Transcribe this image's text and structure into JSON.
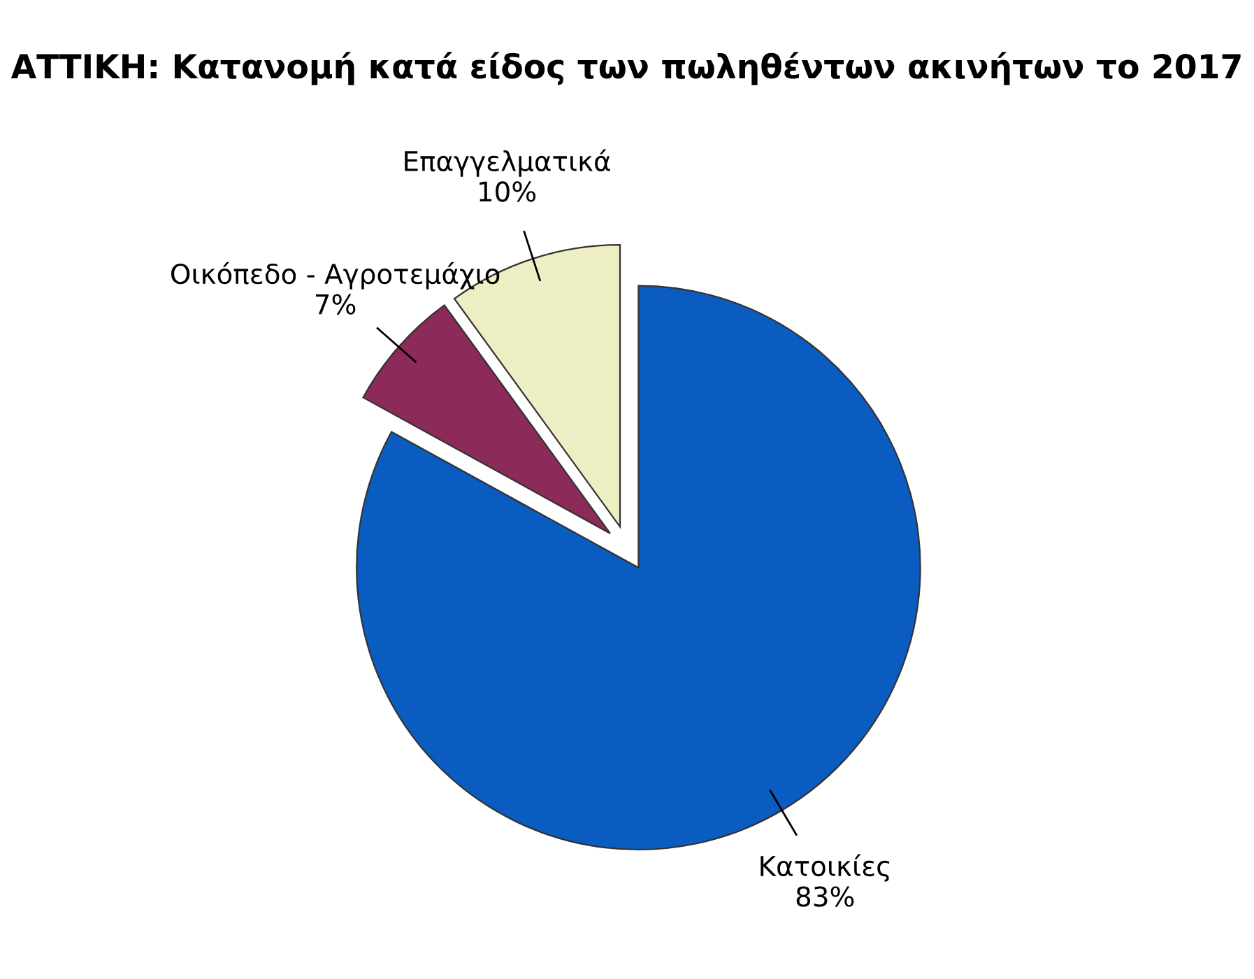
{
  "chart_data": {
    "type": "pie",
    "title": "ΑΤΤΙΚΗ: Κατανομή κατά είδος των πωληθέντων ακινήτων το 2017",
    "categories": [
      "Κατοικίες",
      "Οικόπεδο - Αγροτεμάχιο",
      "Επαγγελματικά"
    ],
    "values": [
      83,
      7,
      10
    ],
    "value_labels": [
      "83%",
      "7%",
      "10%"
    ],
    "colors": [
      "#0a5cc0",
      "#8c2a5a",
      "#eeeec4"
    ],
    "legend": false
  }
}
